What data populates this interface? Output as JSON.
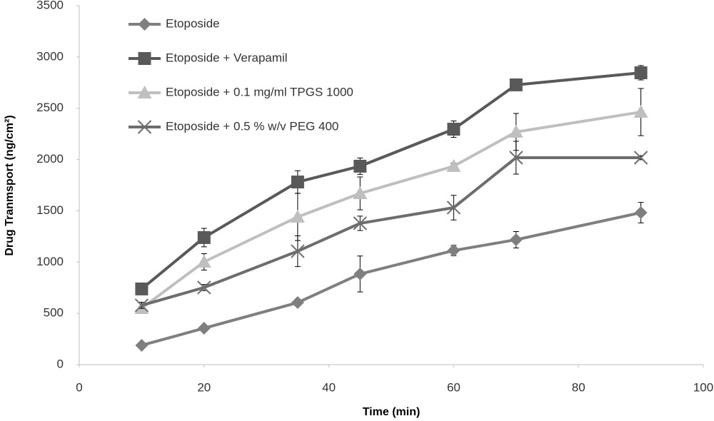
{
  "chart_data": {
    "type": "line",
    "x_label": "Time (min)",
    "y_label": "Drug Tranmsport (ng/cm²)",
    "x": [
      10,
      20,
      35,
      45,
      60,
      70,
      90
    ],
    "series": [
      {
        "name": "Etoposide",
        "color": "#7f7f7f",
        "marker": "diamond",
        "values": [
          188,
          355,
          605,
          884,
          1113,
          1218,
          1482
        ],
        "errors": [
          20,
          20,
          20,
          175,
          50,
          80,
          100
        ]
      },
      {
        "name": "Etoposide + Verapamil",
        "color": "#595959",
        "marker": "square",
        "values": [
          738,
          1239,
          1781,
          1935,
          2296,
          2728,
          2846
        ],
        "errors": [
          20,
          90,
          110,
          80,
          80,
          30,
          70
        ]
      },
      {
        "name": "Etoposide + 0.1 mg/ml TPGS 1000",
        "color": "#bfbfbf",
        "marker": "triangle",
        "values": [
          550,
          1002,
          1440,
          1670,
          1935,
          2269,
          2463
        ],
        "errors": [
          20,
          80,
          230,
          160,
          30,
          180,
          230
        ]
      },
      {
        "name": "Etoposide + 0.5 % w/v PEG 400",
        "color": "#6d6d6d",
        "marker": "x",
        "values": [
          578,
          752,
          1106,
          1378,
          1531,
          2018,
          2018
        ],
        "errors": [
          30,
          30,
          150,
          70,
          120,
          160,
          20
        ]
      }
    ],
    "xlim": [
      0,
      100
    ],
    "xticks": [
      0,
      20,
      40,
      60,
      80,
      100
    ],
    "ylim": [
      0,
      3500
    ],
    "yticks": [
      0,
      500,
      1000,
      1500,
      2000,
      2500,
      3000,
      3500
    ],
    "grid": false,
    "legend": "upper left"
  }
}
